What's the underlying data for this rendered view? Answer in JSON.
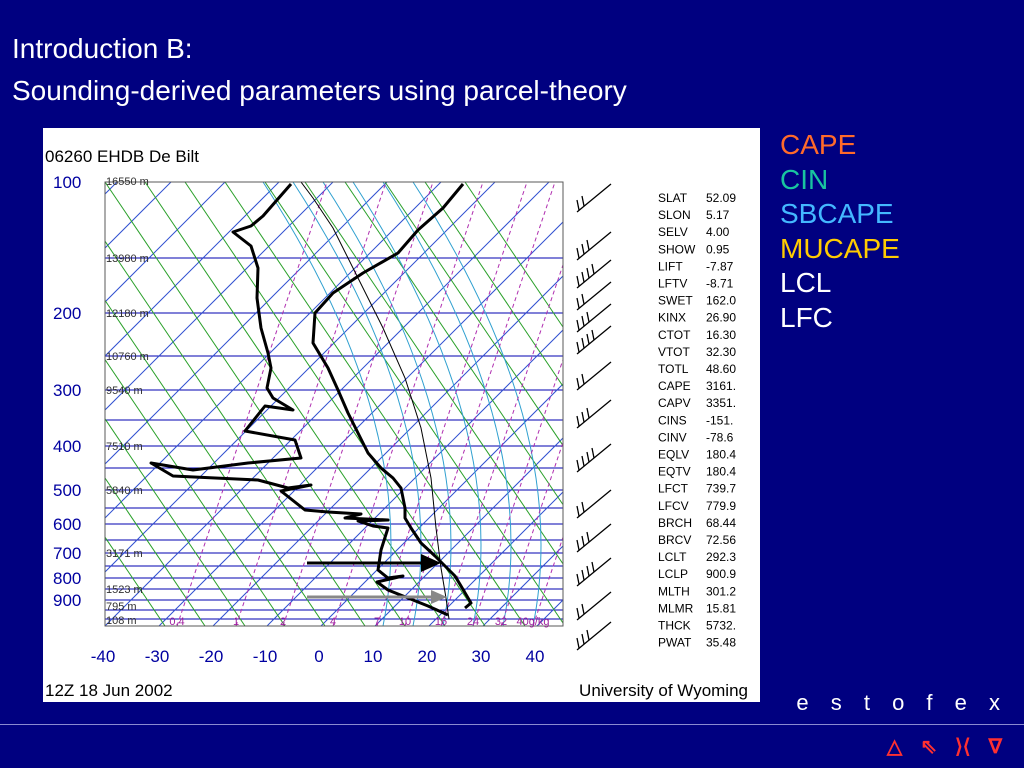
{
  "slide": {
    "title_line1": "Introduction B:",
    "title_line2": "Sounding-derived parameters using parcel-theory",
    "brand": "e s t o f e x"
  },
  "legend": [
    {
      "label": "CAPE",
      "color": "#ff6a2a"
    },
    {
      "label": "CIN",
      "color": "#19c4a0"
    },
    {
      "label": "SBCAPE",
      "color": "#44b8ff"
    },
    {
      "label": "MUCAPE",
      "color": "#ffcc00"
    },
    {
      "label": "LCL",
      "color": "#ffffff"
    },
    {
      "label": "LFC",
      "color": "#ffffff"
    }
  ],
  "nav": [
    {
      "icon": "triangle-up-icon",
      "glyph": "△"
    },
    {
      "icon": "return-arrow-icon",
      "glyph": "⇖"
    },
    {
      "icon": "skip-icon",
      "glyph": "⟩⟨"
    },
    {
      "icon": "triangle-down-icon",
      "glyph": "∇"
    }
  ],
  "sounding": {
    "station": "06260 EHDB De Bilt",
    "time": "12Z 18 Jun 2002",
    "source": "University of Wyoming",
    "pressure_labels": [
      "100",
      "200",
      "300",
      "400",
      "500",
      "600",
      "700",
      "800",
      "900"
    ],
    "temp_labels": [
      "-40",
      "-30",
      "-20",
      "-10",
      "0",
      "10",
      "20",
      "30",
      "40"
    ],
    "height_labels": [
      "16550 m",
      "13980 m",
      "12180 m",
      "10760 m",
      "9540 m",
      "7510 m",
      "5840 m",
      "3171 m",
      "1523 m",
      "795 m",
      "108 m"
    ],
    "mixing_ratio_labels": [
      "0.4",
      "1",
      "2",
      "4",
      "7",
      "10",
      "16",
      "24",
      "32",
      "40g/kg"
    ],
    "indices": [
      {
        "name": "SLAT",
        "value": "52.09"
      },
      {
        "name": "SLON",
        "value": "5.17"
      },
      {
        "name": "SELV",
        "value": "4.00"
      },
      {
        "name": "SHOW",
        "value": "0.95"
      },
      {
        "name": "LIFT",
        "value": "-7.87"
      },
      {
        "name": "LFTV",
        "value": "-8.71"
      },
      {
        "name": "SWET",
        "value": "162.0"
      },
      {
        "name": "KINX",
        "value": "26.90"
      },
      {
        "name": "CTOT",
        "value": "16.30"
      },
      {
        "name": "VTOT",
        "value": "32.30"
      },
      {
        "name": "TOTL",
        "value": "48.60"
      },
      {
        "name": "CAPE",
        "value": "3161."
      },
      {
        "name": "CAPV",
        "value": "3351."
      },
      {
        "name": "CINS",
        "value": "-151."
      },
      {
        "name": "CINV",
        "value": "-78.6"
      },
      {
        "name": "EQLV",
        "value": "180.4"
      },
      {
        "name": "EQTV",
        "value": "180.4"
      },
      {
        "name": "LFCT",
        "value": "739.7"
      },
      {
        "name": "LFCV",
        "value": "779.9"
      },
      {
        "name": "BRCH",
        "value": "68.44"
      },
      {
        "name": "BRCV",
        "value": "72.56"
      },
      {
        "name": "LCLT",
        "value": "292.3"
      },
      {
        "name": "LCLP",
        "value": "900.9"
      },
      {
        "name": "MLTH",
        "value": "301.2"
      },
      {
        "name": "MLMR",
        "value": "15.81"
      },
      {
        "name": "THCK",
        "value": "5732."
      },
      {
        "name": "PWAT",
        "value": "35.48"
      }
    ]
  }
}
